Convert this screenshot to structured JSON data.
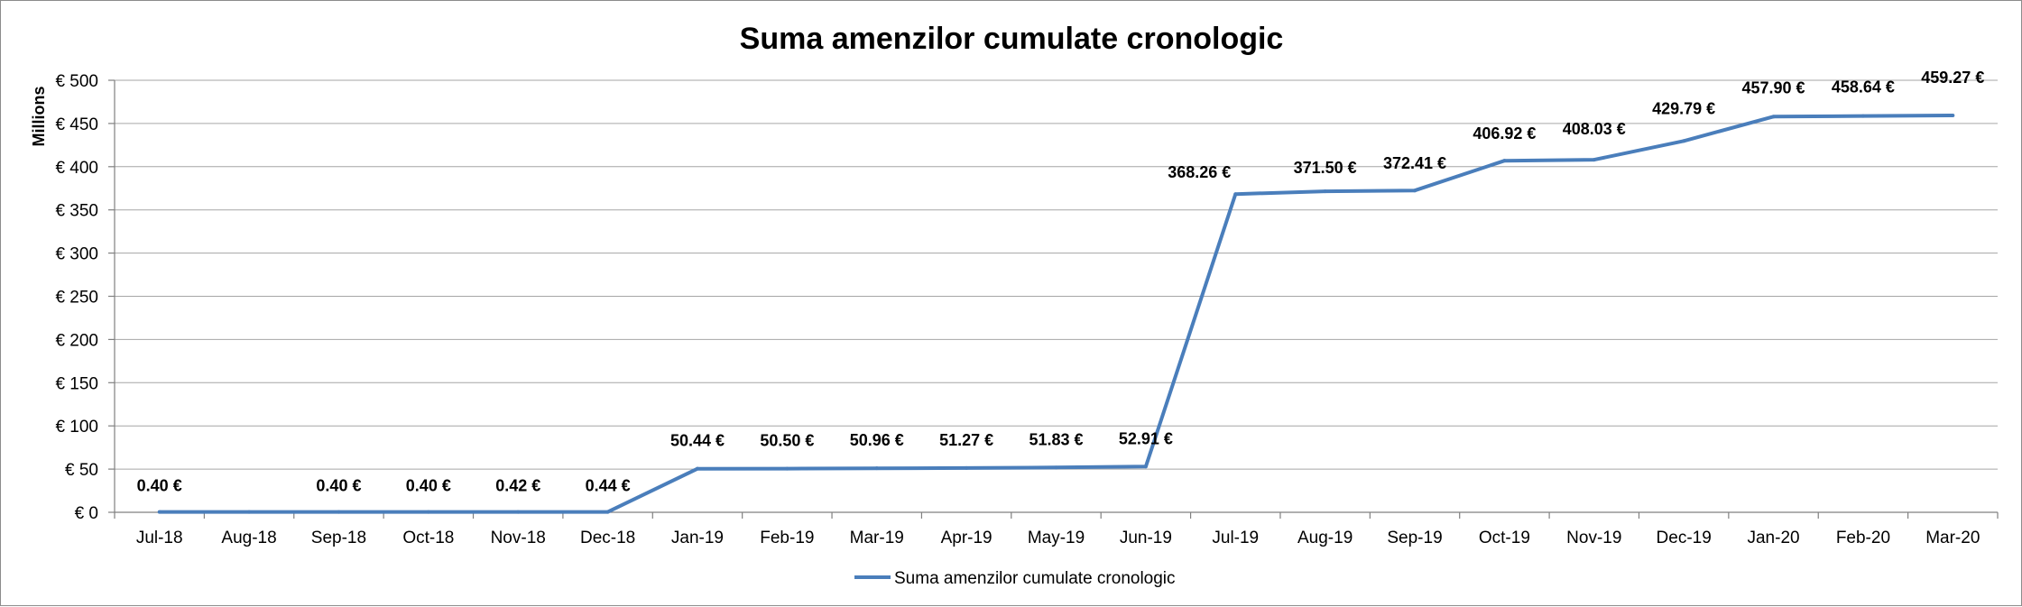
{
  "chart_data": {
    "type": "line",
    "title": "Suma amenzilor cumulate cronologic",
    "ylabel": "Millions",
    "xlabel": "",
    "ylim": [
      0,
      500
    ],
    "yticks": [
      0,
      50,
      100,
      150,
      200,
      250,
      300,
      350,
      400,
      450,
      500
    ],
    "ytick_labels": [
      "€ 0",
      "€ 50",
      "€ 100",
      "€ 150",
      "€ 200",
      "€ 250",
      "€ 300",
      "€ 350",
      "€ 400",
      "€ 450",
      "€ 500"
    ],
    "grid": true,
    "legend_position": "bottom",
    "categories": [
      "Jul-18",
      "Aug-18",
      "Sep-18",
      "Oct-18",
      "Nov-18",
      "Dec-18",
      "Jan-19",
      "Feb-19",
      "Mar-19",
      "Apr-19",
      "May-19",
      "Jun-19",
      "Jul-19",
      "Aug-19",
      "Sep-19",
      "Oct-19",
      "Nov-19",
      "Dec-19",
      "Jan-20",
      "Feb-20",
      "Mar-20"
    ],
    "series": [
      {
        "name": "Suma amenzilor cumulate cronologic",
        "color": "#4a7ebb",
        "values": [
          0.4,
          0.4,
          0.4,
          0.4,
          0.42,
          0.44,
          50.44,
          50.5,
          50.96,
          51.27,
          51.83,
          52.91,
          368.26,
          371.5,
          372.41,
          406.92,
          408.03,
          429.79,
          457.9,
          458.64,
          459.27
        ],
        "data_labels": [
          "0.40 €",
          "",
          "0.40 €",
          "0.40 €",
          "0.42 €",
          "0.44 €",
          "50.44 €",
          "50.50 €",
          "50.96 €",
          "51.27 €",
          "51.83 €",
          "52.91 €",
          "368.26 €",
          "371.50 €",
          "372.41 €",
          "406.92 €",
          "408.03 €",
          "429.79 €",
          "457.90 €",
          "458.64 €",
          "459.27 €"
        ]
      }
    ]
  }
}
